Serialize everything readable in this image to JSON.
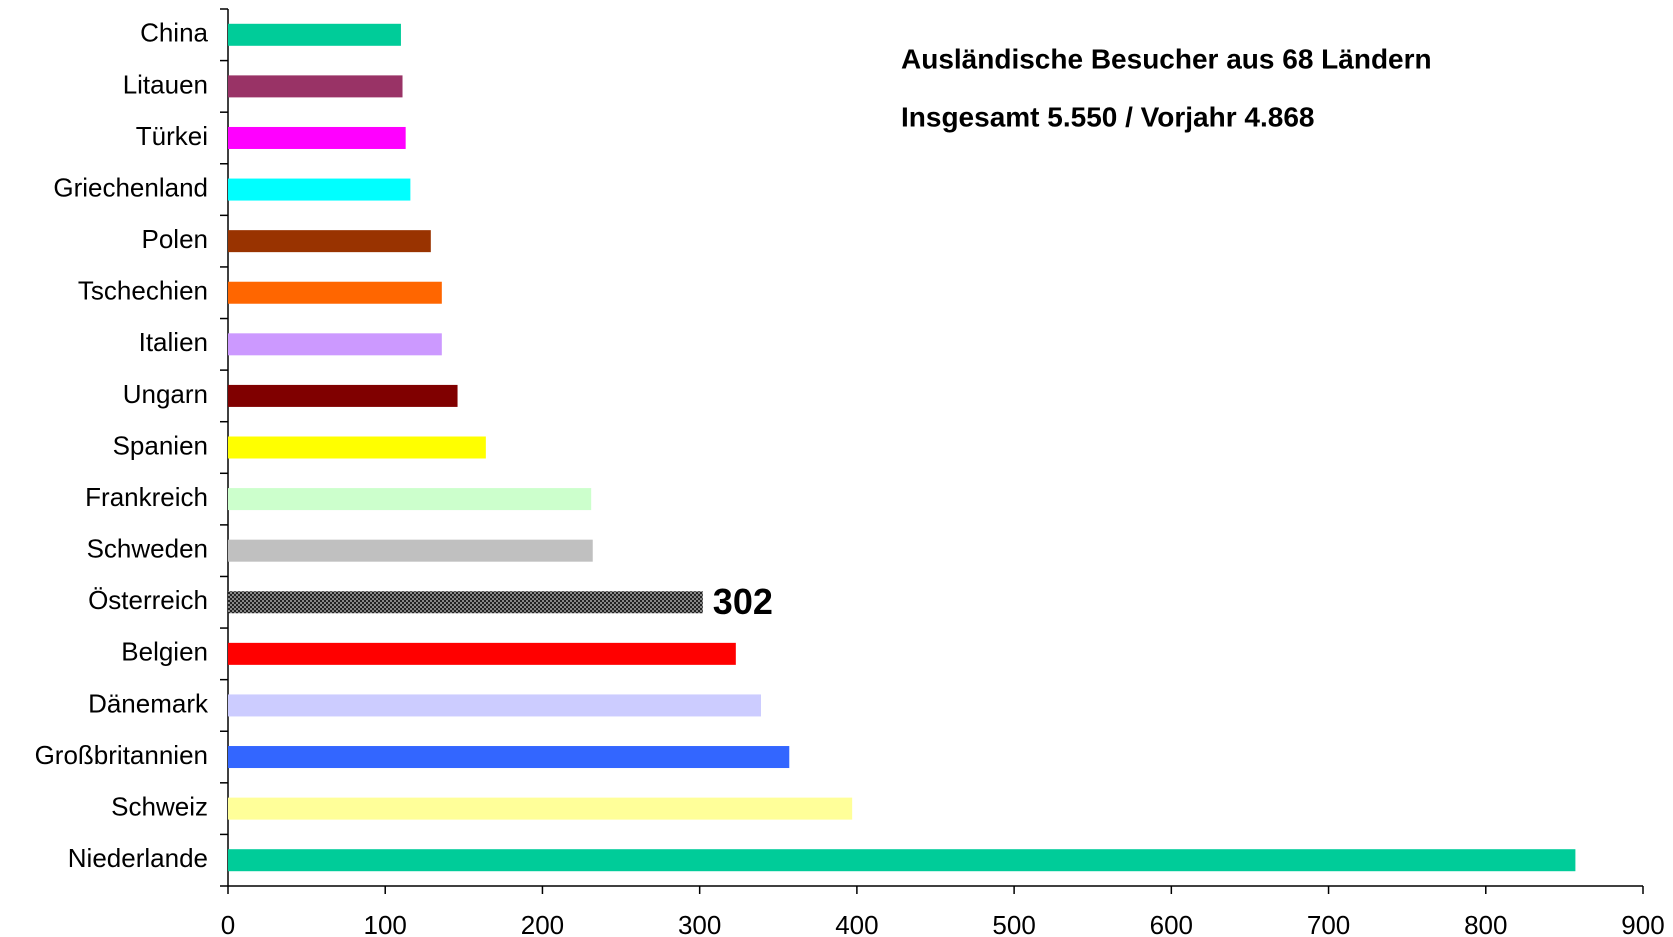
{
  "chart_data": {
    "type": "barh",
    "title": "Ausländische Besucher aus 68 Ländern",
    "subtitle": "Insgesamt 5.550 / Vorjahr 4.868",
    "categories": [
      "China",
      "Litauen",
      "Türkei",
      "Griechenland",
      "Polen",
      "Tschechien",
      "Italien",
      "Ungarn",
      "Spanien",
      "Frankreich",
      "Schweden",
      "Österreich",
      "Belgien",
      "Dänemark",
      "Großbritannien",
      "Schweiz",
      "Niederlande"
    ],
    "values": [
      110,
      111,
      113,
      116,
      129,
      136,
      136,
      146,
      164,
      231,
      232,
      302,
      323,
      339,
      357,
      397,
      857
    ],
    "colors": [
      "#00cc99",
      "#993366",
      "#ff00ff",
      "#00ffff",
      "#993300",
      "#ff6600",
      "#cc99ff",
      "#800000",
      "#ffff00",
      "#ccffcc",
      "#c0c0c0",
      "#555555",
      "#ff0000",
      "#ccccff",
      "#3366ff",
      "#ffff99",
      "#00cc99"
    ],
    "patterned": [
      false,
      false,
      false,
      false,
      false,
      false,
      false,
      false,
      false,
      false,
      false,
      true,
      false,
      false,
      false,
      false,
      false
    ],
    "show_value_label": [
      false,
      false,
      false,
      false,
      false,
      false,
      false,
      false,
      false,
      false,
      false,
      true,
      false,
      false,
      false,
      false,
      false
    ],
    "xlim": [
      0,
      900
    ],
    "xticks": [
      0,
      100,
      200,
      300,
      400,
      500,
      600,
      700,
      800,
      900
    ],
    "grid": false
  }
}
